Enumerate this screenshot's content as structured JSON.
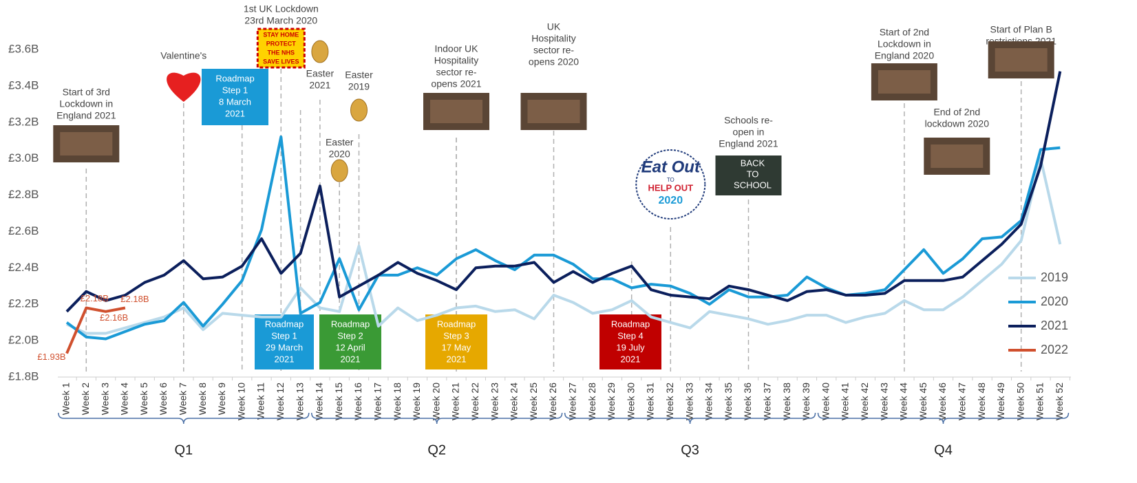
{
  "chart_data": {
    "type": "line",
    "categories": [
      "Week 1",
      "Week 2",
      "Week 3",
      "Week 4",
      "Week 5",
      "Week 6",
      "Week 7",
      "Week 8",
      "Week 9",
      "Week 10",
      "Week 11",
      "Week 12",
      "Week 13",
      "Week 14",
      "Week 15",
      "Week 16",
      "Week 17",
      "Week 18",
      "Week 19",
      "Week 20",
      "Week 21",
      "Week 22",
      "Week 23",
      "Week 24",
      "Week 25",
      "Week 26",
      "Week 27",
      "Week 28",
      "Week 29",
      "Week 30",
      "Week 31",
      "Week 32",
      "Week 33",
      "Week 34",
      "Week 35",
      "Week 36",
      "Week 37",
      "Week 38",
      "Week 39",
      "Week 40",
      "Week 41",
      "Week 42",
      "Week 43",
      "Week 44",
      "Week 45",
      "Week 46",
      "Week 47",
      "Week 48",
      "Week 49",
      "Week 50",
      "Week 51",
      "Week 52"
    ],
    "series": [
      {
        "name": "2019",
        "color": "#b9d9ea",
        "values": [
          2.09,
          2.04,
          2.04,
          2.07,
          2.1,
          2.13,
          2.18,
          2.06,
          2.15,
          2.14,
          2.13,
          2.13,
          2.29,
          2.18,
          2.16,
          2.52,
          2.08,
          2.18,
          2.11,
          2.14,
          2.18,
          2.19,
          2.16,
          2.17,
          2.12,
          2.25,
          2.21,
          2.15,
          2.17,
          2.22,
          2.13,
          2.1,
          2.07,
          2.16,
          2.14,
          2.12,
          2.09,
          2.11,
          2.14,
          2.14,
          2.1,
          2.13,
          2.15,
          2.22,
          2.17,
          2.17,
          2.24,
          2.33,
          2.42,
          2.55,
          3.0,
          2.53
        ]
      },
      {
        "name": "2020",
        "color": "#1a9ad6",
        "values": [
          2.1,
          2.02,
          2.01,
          2.05,
          2.09,
          2.11,
          2.21,
          2.08,
          2.2,
          2.33,
          2.61,
          3.12,
          2.15,
          2.21,
          2.45,
          2.17,
          2.36,
          2.36,
          2.4,
          2.36,
          2.45,
          2.5,
          2.44,
          2.39,
          2.47,
          2.47,
          2.42,
          2.34,
          2.34,
          2.29,
          2.31,
          2.3,
          2.26,
          2.2,
          2.28,
          2.24,
          2.24,
          2.25,
          2.35,
          2.29,
          2.25,
          2.26,
          2.28,
          2.39,
          2.5,
          2.37,
          2.45,
          2.56,
          2.57,
          2.66,
          3.05,
          3.06
        ]
      },
      {
        "name": "2021",
        "color": "#0b1f5c",
        "values": [
          2.16,
          2.27,
          2.22,
          2.25,
          2.32,
          2.36,
          2.44,
          2.34,
          2.35,
          2.41,
          2.56,
          2.37,
          2.48,
          2.85,
          2.24,
          2.3,
          2.36,
          2.43,
          2.37,
          2.33,
          2.28,
          2.4,
          2.41,
          2.41,
          2.43,
          2.32,
          2.38,
          2.32,
          2.37,
          2.41,
          2.28,
          2.25,
          2.24,
          2.23,
          2.3,
          2.28,
          2.25,
          2.22,
          2.27,
          2.28,
          2.25,
          2.25,
          2.26,
          2.33,
          2.33,
          2.33,
          2.35,
          2.44,
          2.53,
          2.64,
          2.96,
          3.48
        ]
      },
      {
        "name": "2022",
        "color": "#d0502e",
        "values": [
          1.93,
          2.18,
          2.16,
          2.18,
          null,
          null,
          null,
          null,
          null,
          null,
          null,
          null,
          null,
          null,
          null,
          null,
          null,
          null,
          null,
          null,
          null,
          null,
          null,
          null,
          null,
          null,
          null,
          null,
          null,
          null,
          null,
          null,
          null,
          null,
          null,
          null,
          null,
          null,
          null,
          null,
          null,
          null,
          null,
          null,
          null,
          null,
          null,
          null,
          null,
          null,
          null,
          null
        ],
        "value_labels": [
          "£1.93B",
          "£2.18B",
          "£2.16B",
          "£2.18B",
          null,
          null,
          null,
          null,
          null,
          null,
          null,
          null,
          null,
          null,
          null,
          null,
          null,
          null,
          null,
          null,
          null,
          null,
          null,
          null,
          null,
          null,
          null,
          null,
          null,
          null,
          null,
          null,
          null,
          null,
          null,
          null,
          null,
          null,
          null,
          null,
          null,
          null,
          null,
          null,
          null,
          null,
          null,
          null,
          null,
          null,
          null,
          null
        ]
      }
    ],
    "ylim": [
      1.8,
      3.6
    ],
    "yticks": [
      {
        "value": 1.8,
        "label": "£1.8B"
      },
      {
        "value": 2.0,
        "label": "£2.0B"
      },
      {
        "value": 2.2,
        "label": "£2.2B"
      },
      {
        "value": 2.4,
        "label": "£2.4B"
      },
      {
        "value": 2.6,
        "label": "£2.6B"
      },
      {
        "value": 2.8,
        "label": "£2.8B"
      },
      {
        "value": 3.0,
        "label": "£3.0B"
      },
      {
        "value": 3.2,
        "label": "£3.2B"
      },
      {
        "value": 3.4,
        "label": "£3.4B"
      },
      {
        "value": 3.6,
        "label": "£3.6B"
      }
    ],
    "grid": false,
    "legend": "right",
    "quarters": [
      "Q1",
      "Q2",
      "Q3",
      "Q4"
    ],
    "annotations": [
      {
        "lines": [
          "Start of 3rd",
          "Lockdown in",
          "England 2021"
        ]
      },
      {
        "lines": [
          "Valentine's"
        ]
      },
      {
        "lines": [
          "1st UK Lockdown",
          "23rd March 2020"
        ]
      },
      {
        "lines": [
          "Easter",
          "2021"
        ]
      },
      {
        "lines": [
          "Easter",
          "2019"
        ]
      },
      {
        "lines": [
          "Easter",
          "2020"
        ]
      },
      {
        "lines": [
          "Indoor UK",
          "Hospitality",
          "sector re-",
          "opens 2021"
        ]
      },
      {
        "lines": [
          "UK",
          "Hospitality",
          "sector re-",
          "opens 2020"
        ]
      },
      {
        "lines": [
          "Schools re-",
          "open in",
          "England 2021"
        ]
      },
      {
        "lines": [
          "Start of 2nd",
          "Lockdown in",
          "England 2020"
        ]
      },
      {
        "lines": [
          "End of 2nd",
          "lockdown 2020"
        ]
      },
      {
        "lines": [
          "Start of Plan B",
          "restrictions 2021"
        ]
      }
    ],
    "roadmap_boxes": [
      {
        "lines": [
          "Roadmap",
          "Step 1",
          "8 March",
          "2021"
        ],
        "color": "#1a9ad6"
      },
      {
        "lines": [
          "Roadmap",
          "Step 1",
          "29 March",
          "2021"
        ],
        "color": "#1a9ad6"
      },
      {
        "lines": [
          "Roadmap",
          "Step 2",
          "12 April",
          "2021"
        ],
        "color": "#3a9a35"
      },
      {
        "lines": [
          "Roadmap",
          "Step 3",
          "17 May",
          "2021"
        ],
        "color": "#e6a800"
      },
      {
        "lines": [
          "Roadmap",
          "Step 4",
          "19 July",
          "2021"
        ],
        "color": "#c00000"
      }
    ],
    "stay_home_sign": [
      "STAY HOME",
      "PROTECT",
      "THE NHS",
      "SAVE LIVES"
    ],
    "eat_out_logo": [
      "Eat Out",
      "TO",
      "HELP OUT",
      "2020"
    ],
    "back_to_school": [
      "BACK",
      "TO",
      "SCHOOL"
    ]
  }
}
